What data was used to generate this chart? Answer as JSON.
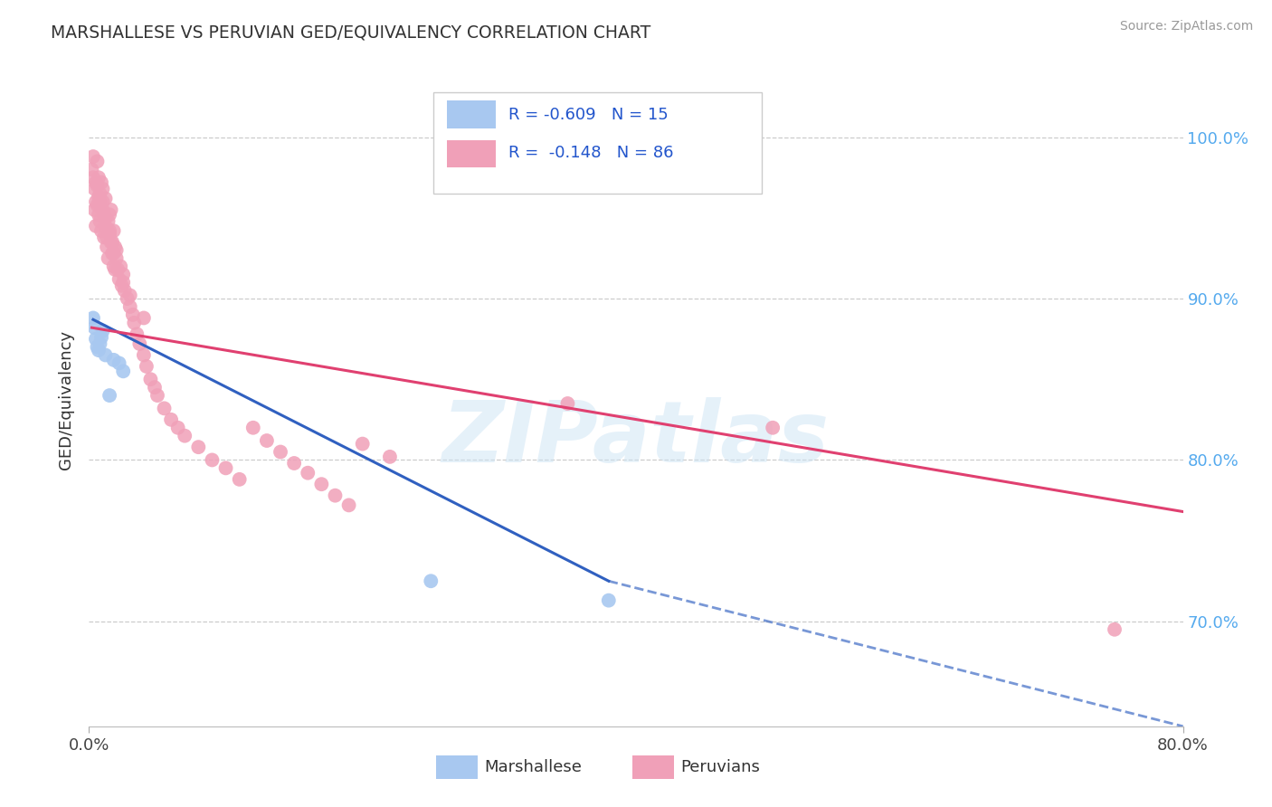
{
  "title": "MARSHALLESE VS PERUVIAN GED/EQUIVALENCY CORRELATION CHART",
  "source": "Source: ZipAtlas.com",
  "ylabel": "GED/Equivalency",
  "yticks": [
    0.7,
    0.8,
    0.9,
    1.0
  ],
  "ytick_labels": [
    "70.0%",
    "80.0%",
    "90.0%",
    "100.0%"
  ],
  "xlim": [
    0.0,
    0.8
  ],
  "ylim": [
    0.635,
    1.04
  ],
  "marshallese_R": "-0.609",
  "marshallese_N": "15",
  "peruvian_R": "-0.148",
  "peruvian_N": "86",
  "marshallese_color": "#a8c8f0",
  "peruvian_color": "#f0a0b8",
  "marshallese_line_color": "#3060c0",
  "peruvian_line_color": "#e04070",
  "watermark": "ZIPatlas",
  "marshallese_x": [
    0.003,
    0.004,
    0.005,
    0.006,
    0.007,
    0.008,
    0.009,
    0.01,
    0.012,
    0.015,
    0.018,
    0.022,
    0.025,
    0.25,
    0.38
  ],
  "marshallese_y": [
    0.888,
    0.882,
    0.875,
    0.87,
    0.868,
    0.872,
    0.876,
    0.88,
    0.865,
    0.84,
    0.862,
    0.86,
    0.855,
    0.725,
    0.713
  ],
  "peruvian_x": [
    0.002,
    0.003,
    0.004,
    0.005,
    0.005,
    0.006,
    0.006,
    0.007,
    0.007,
    0.008,
    0.008,
    0.009,
    0.01,
    0.01,
    0.011,
    0.012,
    0.012,
    0.013,
    0.014,
    0.015,
    0.015,
    0.016,
    0.017,
    0.018,
    0.018,
    0.019,
    0.02,
    0.021,
    0.022,
    0.023,
    0.024,
    0.025,
    0.026,
    0.028,
    0.03,
    0.032,
    0.033,
    0.035,
    0.037,
    0.04,
    0.042,
    0.045,
    0.048,
    0.05,
    0.055,
    0.06,
    0.065,
    0.07,
    0.08,
    0.09,
    0.1,
    0.11,
    0.12,
    0.13,
    0.14,
    0.15,
    0.16,
    0.17,
    0.18,
    0.19,
    0.2,
    0.22,
    0.35,
    0.5,
    0.75,
    0.003,
    0.004,
    0.005,
    0.006,
    0.007,
    0.008,
    0.009,
    0.01,
    0.011,
    0.012,
    0.013,
    0.014,
    0.015,
    0.016,
    0.017,
    0.018,
    0.019,
    0.02,
    0.025,
    0.03,
    0.04
  ],
  "peruvian_y": [
    0.98,
    0.975,
    0.955,
    0.945,
    0.972,
    0.958,
    0.97,
    0.952,
    0.963,
    0.948,
    0.96,
    0.942,
    0.955,
    0.968,
    0.938,
    0.95,
    0.962,
    0.932,
    0.925,
    0.94,
    0.952,
    0.935,
    0.928,
    0.942,
    0.92,
    0.932,
    0.925,
    0.918,
    0.912,
    0.92,
    0.908,
    0.915,
    0.905,
    0.9,
    0.895,
    0.89,
    0.885,
    0.878,
    0.872,
    0.865,
    0.858,
    0.85,
    0.845,
    0.84,
    0.832,
    0.825,
    0.82,
    0.815,
    0.808,
    0.8,
    0.795,
    0.788,
    0.82,
    0.812,
    0.805,
    0.798,
    0.792,
    0.785,
    0.778,
    0.772,
    0.81,
    0.802,
    0.835,
    0.82,
    0.695,
    0.988,
    0.968,
    0.96,
    0.985,
    0.975,
    0.965,
    0.972,
    0.96,
    0.952,
    0.945,
    0.938,
    0.948,
    0.942,
    0.955,
    0.935,
    0.928,
    0.918,
    0.93,
    0.91,
    0.902,
    0.888
  ],
  "marshallese_line_x0": 0.003,
  "marshallese_line_x_solid_end": 0.38,
  "marshallese_line_x_dash_end": 0.8,
  "marshallese_line_y0": 0.887,
  "marshallese_line_y_solid_end": 0.725,
  "marshallese_line_y_dash_end": 0.635,
  "peruvian_line_x0": 0.002,
  "peruvian_line_x_end": 0.8,
  "peruvian_line_y0": 0.882,
  "peruvian_line_y_end": 0.768
}
